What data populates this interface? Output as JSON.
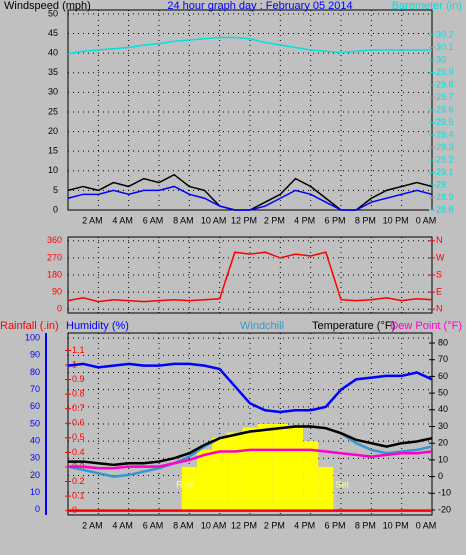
{
  "chart_data": [
    {
      "type": "line",
      "title": "24 hour graph day : February 05 2014",
      "ylabel": "Windspeed (mph)",
      "y2label": "Barometer (in)",
      "grid": true,
      "xlim": [
        0,
        24
      ],
      "xticks": [
        {
          "value": 2,
          "label": "2 AM"
        },
        {
          "value": 4,
          "label": "4 AM"
        },
        {
          "value": 6,
          "label": "6 AM"
        },
        {
          "value": 8,
          "label": "8 AM"
        },
        {
          "value": 10,
          "label": "10 AM"
        },
        {
          "value": 12,
          "label": "12 PM"
        },
        {
          "value": 14,
          "label": "2 PM"
        },
        {
          "value": 16,
          "label": "4 PM"
        },
        {
          "value": 18,
          "label": "6 PM"
        },
        {
          "value": 20,
          "label": "8 PM"
        },
        {
          "value": 22,
          "label": "10 PM"
        },
        {
          "value": 24,
          "label": "0 AM"
        }
      ],
      "ylim": [
        0,
        51
      ],
      "yticks": [
        0,
        5,
        10,
        15,
        20,
        25,
        30,
        35,
        40,
        45,
        50
      ],
      "ycolor": "#000000",
      "y2lim": [
        28.8,
        30.4
      ],
      "y2ticks": [
        28.8,
        28.9,
        29,
        29.1,
        29.2,
        29.3,
        29.4,
        29.5,
        29.6,
        29.7,
        29.8,
        29.9,
        30,
        30.1,
        30.2
      ],
      "y2color": "#00e0e0",
      "x": [
        0,
        1,
        2,
        3,
        4,
        5,
        6,
        7,
        8,
        9,
        10,
        11,
        12,
        13,
        14,
        15,
        16,
        17,
        18,
        19,
        20,
        21,
        22,
        23,
        24
      ],
      "series": [
        {
          "color": "#000000",
          "values": [
            5,
            6,
            5,
            7,
            6,
            8,
            7,
            9,
            6,
            5,
            1,
            0,
            0,
            2,
            4,
            8,
            6,
            3,
            0,
            0,
            3,
            5,
            6,
            7,
            6
          ]
        },
        {
          "color": "#0000ff",
          "values": [
            3,
            4,
            4,
            5,
            4,
            5,
            5,
            6,
            4,
            3,
            1,
            0,
            0,
            1,
            3,
            5,
            4,
            2,
            0,
            0,
            2,
            3,
            4,
            5,
            4
          ]
        },
        {
          "color": "#00e0e0",
          "axis": "y2",
          "values": [
            30.05,
            30.07,
            30.08,
            30.09,
            30.1,
            30.12,
            30.13,
            30.15,
            30.16,
            30.17,
            30.18,
            30.18,
            30.17,
            30.14,
            30.12,
            30.1,
            30.08,
            30.07,
            30.06,
            30.07,
            30.08,
            30.08,
            30.08,
            30.08,
            30.08
          ]
        }
      ]
    },
    {
      "type": "line",
      "grid": true,
      "xlim": [
        0,
        24
      ],
      "xticks": [
        2,
        4,
        6,
        8,
        10,
        12,
        14,
        16,
        18,
        20,
        22,
        24
      ],
      "ylim": [
        -20,
        380
      ],
      "yticks": [
        0,
        90,
        180,
        270,
        360
      ],
      "ycolor": "#ff0000",
      "y2lim": [
        -20,
        380
      ],
      "y2ticks": [
        {
          "value": 0,
          "label": "N"
        },
        {
          "value": 90,
          "label": "E"
        },
        {
          "value": 180,
          "label": "S"
        },
        {
          "value": 270,
          "label": "W"
        },
        {
          "value": 360,
          "label": "N"
        }
      ],
      "y2color": "#ff0000",
      "x": [
        0,
        1,
        2,
        3,
        4,
        5,
        6,
        7,
        8,
        9,
        10,
        11,
        12,
        13,
        14,
        15,
        16,
        17,
        18,
        19,
        20,
        21,
        22,
        23,
        24
      ],
      "series": [
        {
          "color": "#ff0000",
          "values": [
            45,
            60,
            40,
            50,
            45,
            40,
            45,
            50,
            45,
            50,
            55,
            300,
            290,
            300,
            270,
            290,
            280,
            300,
            50,
            45,
            50,
            60,
            45,
            55,
            50
          ]
        }
      ]
    },
    {
      "type": "line",
      "grid": true,
      "xlim": [
        0,
        24
      ],
      "xticks": [
        {
          "value": 2,
          "label": "2 AM"
        },
        {
          "value": 4,
          "label": "4 AM"
        },
        {
          "value": 6,
          "label": "6 AM"
        },
        {
          "value": 8,
          "label": "8 AM"
        },
        {
          "value": 10,
          "label": "10 AM"
        },
        {
          "value": 12,
          "label": "12 PM"
        },
        {
          "value": 14,
          "label": "2 PM"
        },
        {
          "value": 16,
          "label": "4 PM"
        },
        {
          "value": 18,
          "label": "6 PM"
        },
        {
          "value": 20,
          "label": "8 PM"
        },
        {
          "value": 22,
          "label": "10 PM"
        },
        {
          "value": 24,
          "label": "0 AM"
        }
      ],
      "ylim": [
        -3,
        103
      ],
      "yticks": [
        0,
        10,
        20,
        30,
        40,
        50,
        60,
        70,
        80,
        90,
        100
      ],
      "ycolor": "#0000ff",
      "y2lim": [
        -23,
        86
      ],
      "y2ticks": [
        -20,
        -10,
        0,
        10,
        20,
        30,
        40,
        50,
        60,
        70,
        80
      ],
      "y2color": "#000000",
      "y3lim": [
        -0.03,
        1.22
      ],
      "y3ticks": [
        0,
        0.1,
        0.2,
        0.3,
        0.4,
        0.5,
        0.6,
        0.7,
        0.8,
        0.9,
        1,
        1.1
      ],
      "y3color": "#ff0000",
      "x": [
        0,
        1,
        2,
        3,
        4,
        5,
        6,
        7,
        8,
        9,
        10,
        11,
        12,
        13,
        14,
        15,
        16,
        17,
        18,
        19,
        20,
        21,
        22,
        23,
        24
      ],
      "annotations": [
        {
          "text": "Rise",
          "x": 7
        },
        {
          "text": "Set",
          "x": 17.5
        }
      ],
      "series": [
        {
          "color": "#ffff00",
          "style": "bar",
          "values": [
            0,
            0,
            0,
            0,
            0,
            0,
            0,
            0,
            25,
            35,
            42,
            45,
            48,
            50,
            50,
            48,
            40,
            25,
            0,
            0,
            0,
            0,
            0,
            0,
            0
          ]
        },
        {
          "name": "Rainfall (.in)",
          "color": "#ff0000",
          "axis": "y3",
          "values": [
            0,
            0,
            0,
            0,
            0,
            0,
            0,
            0,
            0,
            0,
            0,
            0,
            0,
            0,
            0,
            0,
            0,
            0,
            0,
            0,
            0,
            0,
            0,
            0,
            0
          ]
        },
        {
          "name": "Humidity (%)",
          "color": "#0000ff",
          "values": [
            84,
            85,
            83,
            84,
            85,
            84,
            84,
            85,
            85,
            84,
            82,
            72,
            62,
            58,
            57,
            58,
            58,
            60,
            70,
            76,
            77,
            78,
            78,
            80,
            76
          ]
        },
        {
          "name": "Windchill",
          "color": "#3399cc",
          "axis": "y2",
          "values": [
            6,
            4,
            2,
            0,
            1,
            3,
            5,
            8,
            12,
            18,
            23,
            25,
            27,
            28,
            29,
            30,
            30,
            29,
            26,
            20,
            16,
            14,
            15,
            16,
            18
          ]
        },
        {
          "name": "Temperature (°F)",
          "color": "#000000",
          "axis": "y2",
          "values": [
            9,
            9,
            8,
            7,
            8,
            8,
            9,
            11,
            14,
            19,
            23,
            25,
            27,
            28,
            29,
            30,
            30,
            29,
            26,
            22,
            20,
            18,
            20,
            21,
            23
          ]
        },
        {
          "name": "Dew Point (°F)",
          "color": "#ff00cc",
          "axis": "y2",
          "values": [
            6,
            6,
            5,
            5,
            6,
            6,
            6,
            8,
            10,
            13,
            15,
            15,
            16,
            16,
            16,
            16,
            16,
            15,
            14,
            13,
            12,
            13,
            14,
            14,
            15
          ]
        }
      ]
    }
  ]
}
